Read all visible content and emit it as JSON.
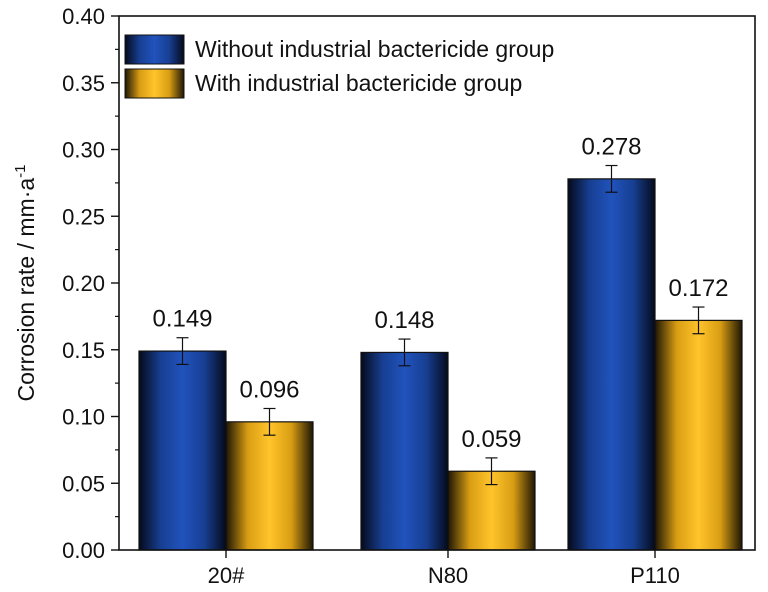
{
  "chart_data": {
    "type": "bar",
    "title": "",
    "xlabel": "",
    "ylabel": "Corrosion rate / mm·a",
    "ylabel_superscript": "-1",
    "ylim": [
      0,
      0.4
    ],
    "yticks": [
      "0.00",
      "0.05",
      "0.10",
      "0.15",
      "0.20",
      "0.25",
      "0.30",
      "0.35",
      "0.40"
    ],
    "categories": [
      "20#",
      "N80",
      "P110"
    ],
    "series": [
      {
        "name": "Without industrial bactericide group",
        "color": "#1f4fb4",
        "values": [
          0.149,
          0.148,
          0.278
        ],
        "labels": [
          "0.149",
          "0.148",
          "0.278"
        ],
        "errors": [
          0.01,
          0.01,
          0.01
        ]
      },
      {
        "name": "With industrial bactericide group",
        "color": "#ffbf1f",
        "values": [
          0.096,
          0.059,
          0.172
        ],
        "labels": [
          "0.096",
          "0.059",
          "0.172"
        ],
        "errors": [
          0.01,
          0.01,
          0.01
        ]
      }
    ],
    "legend_position": "top-left",
    "grid": false
  }
}
